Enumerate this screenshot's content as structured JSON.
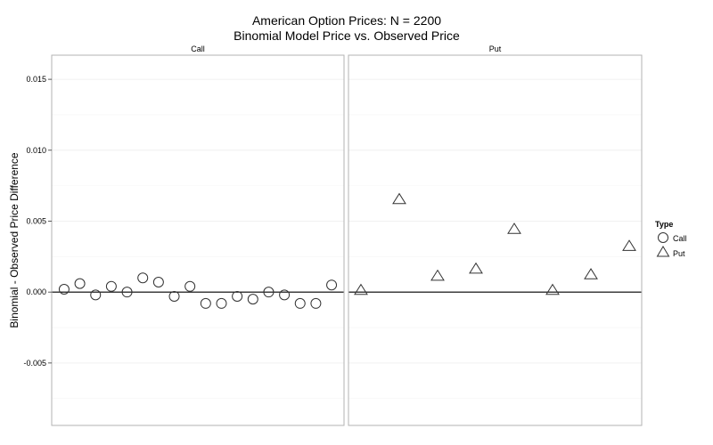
{
  "chart_data": {
    "type": "scatter",
    "title": "American Option Prices: N = 2200",
    "subtitle": "Binomial Model Price vs. Observed Price",
    "ylabel": "Binomial - Observed Price Difference",
    "xlabel": "",
    "ylim": [
      -0.009,
      0.017
    ],
    "yticks": [
      -0.005,
      0.0,
      0.005,
      0.01,
      0.015
    ],
    "ytick_labels": [
      "-0.005",
      "0.000",
      "0.005",
      "0.010",
      "0.015"
    ],
    "grid": true,
    "reference_line": 0.0,
    "facets": [
      {
        "label": "Call",
        "shape": "circle",
        "y": [
          0.0002,
          0.0006,
          -0.0002,
          0.0004,
          0.0,
          0.001,
          0.0007,
          -0.0003,
          0.0004,
          -0.0008,
          -0.0008,
          -0.0003,
          -0.0005,
          0.0,
          -0.0002,
          -0.0008,
          -0.0008,
          0.0005
        ]
      },
      {
        "label": "Put",
        "shape": "triangle",
        "y": [
          0.0001,
          0.0065,
          0.0011,
          0.0016,
          0.0044,
          0.0001,
          0.0012,
          0.0032
        ]
      }
    ],
    "legend": {
      "title": "Type",
      "position": "right",
      "entries": [
        {
          "label": "Call",
          "shape": "circle"
        },
        {
          "label": "Put",
          "shape": "triangle"
        }
      ]
    },
    "colors": {
      "marker_stroke": "#333333",
      "panel_border": "#b3b3b3",
      "grid_major": "#ededed",
      "grid_minor": "#f5f5f5",
      "zero_line": "#000000"
    }
  }
}
